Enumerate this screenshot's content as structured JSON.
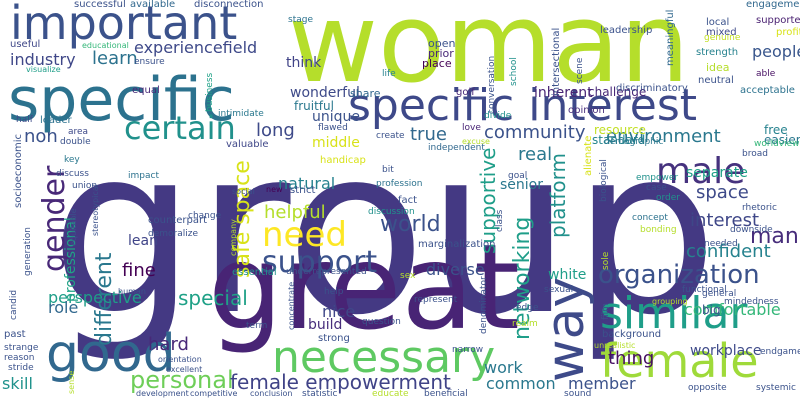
{
  "word_cloud": {
    "words": [
      {
        "text": "group",
        "color": "#443983"
      },
      {
        "text": "woman",
        "color": "#b5de2b"
      },
      {
        "text": "great",
        "color": "#482475"
      },
      {
        "text": "specific",
        "color": "#2c728e"
      },
      {
        "text": "important",
        "color": "#3b528b"
      },
      {
        "text": "specific interest",
        "color": "#3e4989"
      },
      {
        "text": "female",
        "color": "#9fda3a"
      },
      {
        "text": "necessary",
        "color": "#5ec962"
      },
      {
        "text": "good",
        "color": "#31688e"
      },
      {
        "text": "gender",
        "color": "#482878"
      },
      {
        "text": "way",
        "color": "#3e4a89"
      },
      {
        "text": "similar",
        "color": "#1f9e89"
      },
      {
        "text": "certain",
        "color": "#21918c"
      },
      {
        "text": "male",
        "color": "#46327e"
      },
      {
        "text": "need",
        "color": "#fde725"
      },
      {
        "text": "support",
        "color": "#3b528b"
      },
      {
        "text": "organization",
        "color": "#3b528b"
      },
      {
        "text": "different",
        "color": "#2a788e"
      },
      {
        "text": "safe space",
        "color": "#d8e219"
      },
      {
        "text": "networking",
        "color": "#1f9e89"
      },
      {
        "text": "personal",
        "color": "#6ece58"
      },
      {
        "text": "female empowerment",
        "color": "#404387"
      },
      {
        "text": "experiencefield",
        "color": "#3e4989"
      },
      {
        "text": "industry",
        "color": "#3f4788"
      },
      {
        "text": "learn",
        "color": "#2c728e"
      },
      {
        "text": "long",
        "color": "#3e4a89"
      },
      {
        "text": "community",
        "color": "#3b528b"
      },
      {
        "text": "true",
        "color": "#31688e"
      },
      {
        "text": "environment",
        "color": "#2a788e"
      },
      {
        "text": "people",
        "color": "#39568c"
      },
      {
        "text": "man",
        "color": "#472d7b"
      },
      {
        "text": "confident",
        "color": "#26828e"
      },
      {
        "text": "interest",
        "color": "#3f4788"
      },
      {
        "text": "space",
        "color": "#3e4a89"
      },
      {
        "text": "supportive",
        "color": "#1f9e89"
      },
      {
        "text": "platform",
        "color": "#21918c"
      },
      {
        "text": "world",
        "color": "#3b528b"
      },
      {
        "text": "natural",
        "color": "#26828e"
      },
      {
        "text": "helpful",
        "color": "#b5de2b"
      },
      {
        "text": "real",
        "color": "#2a788e"
      },
      {
        "text": "perspective",
        "color": "#1f9e89"
      },
      {
        "text": "special",
        "color": "#1fa187"
      },
      {
        "text": "role",
        "color": "#31688e"
      },
      {
        "text": "hard",
        "color": "#482878"
      },
      {
        "text": "skill",
        "color": "#20928c"
      },
      {
        "text": "common",
        "color": "#2a788e"
      },
      {
        "text": "member",
        "color": "#3b528b"
      },
      {
        "text": "thing",
        "color": "#471063"
      },
      {
        "text": "comfortable",
        "color": "#35b779"
      },
      {
        "text": "workplace",
        "color": "#3e4a89"
      },
      {
        "text": "fine",
        "color": "#440154"
      },
      {
        "text": "diverse",
        "color": "#3b528b"
      },
      {
        "text": "white",
        "color": "#1f9e89"
      },
      {
        "text": "senior",
        "color": "#2a788e"
      },
      {
        "text": "separate",
        "color": "#1fa187"
      },
      {
        "text": "professional",
        "color": "#20a386"
      },
      {
        "text": "lean",
        "color": "#404588"
      },
      {
        "text": "nice",
        "color": "#3f4788"
      },
      {
        "text": "build",
        "color": "#472d7b"
      },
      {
        "text": "non",
        "color": "#3b528b"
      },
      {
        "text": "work",
        "color": "#2a788e"
      },
      {
        "text": "free",
        "color": "#26828e"
      },
      {
        "text": "easier",
        "color": "#2a788e"
      },
      {
        "text": "resource",
        "color": "#c2df23"
      },
      {
        "text": "standard",
        "color": "#25858e"
      },
      {
        "text": "middle",
        "color": "#d8e219"
      },
      {
        "text": "unique",
        "color": "#3b528b"
      },
      {
        "text": "wonderful",
        "color": "#3e4a89"
      },
      {
        "text": "fruitful",
        "color": "#2a788e"
      },
      {
        "text": "share",
        "color": "#31688e"
      },
      {
        "text": "inherent",
        "color": "#482475"
      },
      {
        "text": "challenge",
        "color": "#482878"
      },
      {
        "text": "think",
        "color": "#404387"
      },
      {
        "text": "open",
        "color": "#3b528b"
      },
      {
        "text": "prior",
        "color": "#482878"
      },
      {
        "text": "place",
        "color": "#440154"
      },
      {
        "text": "successful",
        "color": "#3b528b"
      },
      {
        "text": "available",
        "color": "#31688e"
      },
      {
        "text": "disconnection",
        "color": "#3b528b"
      },
      {
        "text": "stage",
        "color": "#2c728e"
      },
      {
        "text": "leadership",
        "color": "#3b528b"
      },
      {
        "text": "engagement",
        "color": "#31688e"
      },
      {
        "text": "supporter",
        "color": "#481f70"
      },
      {
        "text": "profit",
        "color": "#d8e219"
      },
      {
        "text": "useful",
        "color": "#3f4788"
      },
      {
        "text": "educational",
        "color": "#35b779"
      },
      {
        "text": "intersectional",
        "color": "#3b528b"
      },
      {
        "text": "genuine",
        "color": "#c2df23"
      },
      {
        "text": "meaningful",
        "color": "#31688e"
      },
      {
        "text": "strength",
        "color": "#26828e"
      },
      {
        "text": "local",
        "color": "#3b528b"
      },
      {
        "text": "mixed",
        "color": "#3e4a89"
      },
      {
        "text": "idea",
        "color": "#b5de2b"
      },
      {
        "text": "neutral",
        "color": "#3b528b"
      },
      {
        "text": "able",
        "color": "#471063"
      },
      {
        "text": "acceptable",
        "color": "#2c728e"
      },
      {
        "text": "visualize",
        "color": "#1f9e89"
      },
      {
        "text": "ensure",
        "color": "#3b528b"
      },
      {
        "text": "equal",
        "color": "#482878"
      },
      {
        "text": "business",
        "color": "#1fa187"
      },
      {
        "text": "conversation",
        "color": "#3b528b"
      },
      {
        "text": "school",
        "color": "#21918c"
      },
      {
        "text": "scene",
        "color": "#3b528b"
      },
      {
        "text": "life",
        "color": "#26828e"
      },
      {
        "text": "golf",
        "color": "#482878"
      },
      {
        "text": "discriminatory",
        "color": "#3b528b"
      },
      {
        "text": "opinion",
        "color": "#472d7b"
      },
      {
        "text": "half",
        "color": "#3e4a89"
      },
      {
        "text": "leader",
        "color": "#2c728e"
      },
      {
        "text": "intimidate",
        "color": "#2a788e"
      },
      {
        "text": "flawed",
        "color": "#3b528b"
      },
      {
        "text": "divide",
        "color": "#21918c"
      },
      {
        "text": "love",
        "color": "#482475"
      },
      {
        "text": "area",
        "color": "#3e4a89"
      },
      {
        "text": "double",
        "color": "#3b528b"
      },
      {
        "text": "valuable",
        "color": "#3f4788"
      },
      {
        "text": "handicap",
        "color": "#d8e219"
      },
      {
        "text": "create",
        "color": "#3b528b"
      },
      {
        "text": "excuse",
        "color": "#b5de2b"
      },
      {
        "text": "demographic",
        "color": "#2a788e"
      },
      {
        "text": "independent",
        "color": "#31688e"
      },
      {
        "text": "broad",
        "color": "#3b528b"
      },
      {
        "text": "worldview",
        "color": "#35b779"
      },
      {
        "text": "socioeconomic",
        "color": "#3b528b"
      },
      {
        "text": "key",
        "color": "#2a788e"
      },
      {
        "text": "discuss",
        "color": "#3b528b"
      },
      {
        "text": "union",
        "color": "#3b528b"
      },
      {
        "text": "impact",
        "color": "#2c728e"
      },
      {
        "text": "social",
        "color": "#3b528b"
      },
      {
        "text": "new",
        "color": "#440154"
      },
      {
        "text": "strict",
        "color": "#3b528b"
      },
      {
        "text": "profession",
        "color": "#2c728e"
      },
      {
        "text": "goal",
        "color": "#3b528b"
      },
      {
        "text": "alienate",
        "color": "#d8e219"
      },
      {
        "text": "biological",
        "color": "#3b528b"
      },
      {
        "text": "empower",
        "color": "#21918c"
      },
      {
        "text": "case",
        "color": "#3b528b"
      },
      {
        "text": "order",
        "color": "#21918c"
      },
      {
        "text": "concept",
        "color": "#2c728e"
      },
      {
        "text": "bonding",
        "color": "#b5de2b"
      },
      {
        "text": "needed",
        "color": "#3b528b"
      },
      {
        "text": "downside",
        "color": "#3b528b"
      },
      {
        "text": "rhetoric",
        "color": "#3b528b"
      },
      {
        "text": "stereotypical",
        "color": "#3b528b"
      },
      {
        "text": "equitable",
        "color": "#3b528b"
      },
      {
        "text": "discussion",
        "color": "#21918c"
      },
      {
        "text": "fact",
        "color": "#3b528b"
      },
      {
        "text": "bit",
        "color": "#3b528b"
      },
      {
        "text": "class",
        "color": "#3b528b"
      },
      {
        "text": "change",
        "color": "#3b528b"
      },
      {
        "text": "counterpart",
        "color": "#3b528b"
      },
      {
        "text": "demoralize",
        "color": "#3b528b"
      },
      {
        "text": "marginalization",
        "color": "#3b528b"
      },
      {
        "text": "generation",
        "color": "#3b528b"
      },
      {
        "text": "company",
        "color": "#b5de2b"
      },
      {
        "text": "essential",
        "color": "#21918c"
      },
      {
        "text": "underrepresented",
        "color": "#3b528b"
      },
      {
        "text": "sex",
        "color": "#b5de2b"
      },
      {
        "text": "sexual",
        "color": "#3b528b"
      },
      {
        "text": "denominator",
        "color": "#3b528b"
      },
      {
        "text": "sole",
        "color": "#b5de2b"
      },
      {
        "text": "functional",
        "color": "#3b528b"
      },
      {
        "text": "general",
        "color": "#3b528b"
      },
      {
        "text": "mindedness",
        "color": "#3b528b"
      },
      {
        "text": "big",
        "color": "#3b528b"
      },
      {
        "text": "film",
        "color": "#3b528b"
      },
      {
        "text": "grouping",
        "color": "#b5de2b"
      },
      {
        "text": "candid",
        "color": "#3b528b"
      },
      {
        "text": "human",
        "color": "#3b528b"
      },
      {
        "text": "concentrate",
        "color": "#3b528b"
      },
      {
        "text": "represent",
        "color": "#3b528b"
      },
      {
        "text": "edge",
        "color": "#3b528b"
      },
      {
        "text": "realm",
        "color": "#b5de2b"
      },
      {
        "text": "background",
        "color": "#3b528b"
      },
      {
        "text": "unrealistic",
        "color": "#b5de2b"
      },
      {
        "text": "past",
        "color": "#3b528b"
      },
      {
        "text": "term",
        "color": "#3b528b"
      },
      {
        "text": "strong",
        "color": "#3b528b"
      },
      {
        "text": "question",
        "color": "#3b528b"
      },
      {
        "text": "strange",
        "color": "#3b528b"
      },
      {
        "text": "orientation",
        "color": "#3b528b"
      },
      {
        "text": "reason",
        "color": "#3b528b"
      },
      {
        "text": "narrow",
        "color": "#3b528b"
      },
      {
        "text": "endgame",
        "color": "#3b528b"
      },
      {
        "text": "stride",
        "color": "#3b528b"
      },
      {
        "text": "excellent",
        "color": "#3b528b"
      },
      {
        "text": "sense",
        "color": "#b5de2b"
      },
      {
        "text": "development",
        "color": "#3b528b"
      },
      {
        "text": "competitive",
        "color": "#3b528b"
      },
      {
        "text": "conclusion",
        "color": "#3b528b"
      },
      {
        "text": "statistic",
        "color": "#3b528b"
      },
      {
        "text": "educate",
        "color": "#b5de2b"
      },
      {
        "text": "beneficial",
        "color": "#3b528b"
      },
      {
        "text": "sound",
        "color": "#3b528b"
      },
      {
        "text": "opposite",
        "color": "#3b528b"
      },
      {
        "text": "systemic",
        "color": "#3b528b"
      },
      {
        "text": "help",
        "color": "#3b528b"
      }
    ]
  }
}
